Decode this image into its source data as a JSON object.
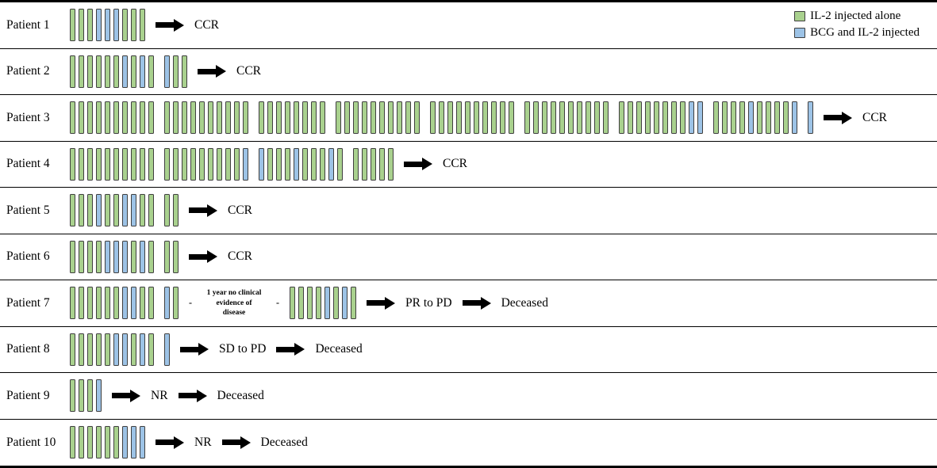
{
  "colors": {
    "green": "#a9d18e",
    "blue": "#9dc3e6",
    "bar_border": "#3f3f3f",
    "arrow": "#000000",
    "rule": "#000000",
    "background": "#ffffff"
  },
  "chart_data": {
    "type": "timeline",
    "title": "",
    "description": "Per-patient injection timeline; each vertical bar is one injection, bars are grouped into treatment courses, followed by clinical outcome(s).",
    "legend_position": "top-right",
    "legend": [
      {
        "code": "G",
        "label": "IL-2 injected alone",
        "color": "#a9d18e"
      },
      {
        "code": "B",
        "label": "BCG and IL-2 injected",
        "color": "#9dc3e6"
      }
    ],
    "patients": [
      {
        "name": "Patient 1",
        "sequence": [
          {
            "type": "bars",
            "bars": [
              "G",
              "G",
              "G",
              "B",
              "B",
              "B",
              "G",
              "G",
              "G"
            ]
          },
          {
            "type": "arrow"
          },
          {
            "type": "outcome",
            "text": "CCR"
          }
        ]
      },
      {
        "name": "Patient 2",
        "sequence": [
          {
            "type": "bars",
            "bars": [
              "G",
              "G",
              "G",
              "G",
              "G",
              "G",
              "B",
              "G",
              "B",
              "G"
            ]
          },
          {
            "type": "bars",
            "bars": [
              "B",
              "G",
              "G"
            ]
          },
          {
            "type": "arrow"
          },
          {
            "type": "outcome",
            "text": "CCR"
          }
        ]
      },
      {
        "name": "Patient 3",
        "sequence": [
          {
            "type": "bars",
            "bars": [
              "G",
              "G",
              "G",
              "G",
              "G",
              "G",
              "G",
              "G",
              "G",
              "G"
            ]
          },
          {
            "type": "bars",
            "bars": [
              "G",
              "G",
              "G",
              "G",
              "G",
              "G",
              "G",
              "G",
              "G",
              "G"
            ]
          },
          {
            "type": "bars",
            "bars": [
              "G",
              "G",
              "G",
              "G",
              "G",
              "G",
              "G",
              "G"
            ]
          },
          {
            "type": "bars",
            "bars": [
              "G",
              "G",
              "G",
              "G",
              "G",
              "G",
              "G",
              "G",
              "G",
              "G"
            ]
          },
          {
            "type": "bars",
            "bars": [
              "G",
              "G",
              "G",
              "G",
              "G",
              "G",
              "G",
              "G",
              "G",
              "G"
            ]
          },
          {
            "type": "bars",
            "bars": [
              "G",
              "G",
              "G",
              "G",
              "G",
              "G",
              "G",
              "G",
              "G",
              "G"
            ]
          },
          {
            "type": "bars",
            "bars": [
              "G",
              "G",
              "G",
              "G",
              "G",
              "G",
              "G",
              "G",
              "B",
              "B"
            ]
          },
          {
            "type": "bars",
            "bars": [
              "G",
              "G",
              "G",
              "G",
              "B",
              "G",
              "G",
              "G",
              "G",
              "B"
            ]
          },
          {
            "type": "bars",
            "bars": [
              "B"
            ]
          },
          {
            "type": "arrow"
          },
          {
            "type": "outcome",
            "text": "CCR"
          }
        ]
      },
      {
        "name": "Patient 4",
        "sequence": [
          {
            "type": "bars",
            "bars": [
              "G",
              "G",
              "G",
              "G",
              "G",
              "G",
              "G",
              "G",
              "G",
              "G"
            ]
          },
          {
            "type": "bars",
            "bars": [
              "G",
              "G",
              "G",
              "G",
              "G",
              "G",
              "G",
              "G",
              "G",
              "B"
            ]
          },
          {
            "type": "bars",
            "bars": [
              "B",
              "G",
              "G",
              "G",
              "B",
              "G",
              "G",
              "G",
              "B",
              "G"
            ]
          },
          {
            "type": "bars",
            "bars": [
              "G",
              "G",
              "G",
              "G",
              "G"
            ]
          },
          {
            "type": "arrow"
          },
          {
            "type": "outcome",
            "text": "CCR"
          }
        ]
      },
      {
        "name": "Patient 5",
        "sequence": [
          {
            "type": "bars",
            "bars": [
              "G",
              "G",
              "G",
              "B",
              "G",
              "G",
              "B",
              "B",
              "G",
              "G"
            ]
          },
          {
            "type": "bars",
            "bars": [
              "G",
              "G"
            ]
          },
          {
            "type": "arrow"
          },
          {
            "type": "outcome",
            "text": "CCR"
          }
        ]
      },
      {
        "name": "Patient 6",
        "sequence": [
          {
            "type": "bars",
            "bars": [
              "G",
              "G",
              "G",
              "G",
              "B",
              "B",
              "B",
              "G",
              "B",
              "G"
            ]
          },
          {
            "type": "bars",
            "bars": [
              "G",
              "G"
            ]
          },
          {
            "type": "arrow"
          },
          {
            "type": "outcome",
            "text": "CCR"
          }
        ]
      },
      {
        "name": "Patient 7",
        "sequence": [
          {
            "type": "bars",
            "bars": [
              "G",
              "G",
              "G",
              "G",
              "G",
              "G",
              "B",
              "B",
              "G",
              "G"
            ]
          },
          {
            "type": "bars",
            "bars": [
              "B",
              "G"
            ]
          },
          {
            "type": "annotation",
            "dash": "-",
            "lines": [
              "1 year no clinical",
              "evidence of",
              "disease"
            ]
          },
          {
            "type": "bars",
            "bars": [
              "G",
              "G",
              "G",
              "G",
              "B",
              "G",
              "B",
              "G"
            ]
          },
          {
            "type": "arrow"
          },
          {
            "type": "outcome",
            "text": "PR to PD"
          },
          {
            "type": "arrow"
          },
          {
            "type": "outcome",
            "text": "Deceased"
          }
        ]
      },
      {
        "name": "Patient 8",
        "sequence": [
          {
            "type": "bars",
            "bars": [
              "G",
              "G",
              "G",
              "G",
              "G",
              "B",
              "B",
              "G",
              "B",
              "G"
            ]
          },
          {
            "type": "bars",
            "bars": [
              "B"
            ]
          },
          {
            "type": "arrow"
          },
          {
            "type": "outcome",
            "text": "SD to PD"
          },
          {
            "type": "arrow"
          },
          {
            "type": "outcome",
            "text": "Deceased"
          }
        ]
      },
      {
        "name": "Patient 9",
        "sequence": [
          {
            "type": "bars",
            "bars": [
              "G",
              "G",
              "G",
              "B"
            ]
          },
          {
            "type": "arrow"
          },
          {
            "type": "outcome",
            "text": "NR"
          },
          {
            "type": "arrow"
          },
          {
            "type": "outcome",
            "text": "Deceased"
          }
        ]
      },
      {
        "name": "Patient 10",
        "sequence": [
          {
            "type": "bars",
            "bars": [
              "G",
              "G",
              "G",
              "G",
              "G",
              "G",
              "B",
              "B",
              "B"
            ]
          },
          {
            "type": "arrow"
          },
          {
            "type": "outcome",
            "text": "NR"
          },
          {
            "type": "arrow"
          },
          {
            "type": "outcome",
            "text": "Deceased"
          }
        ]
      }
    ]
  }
}
